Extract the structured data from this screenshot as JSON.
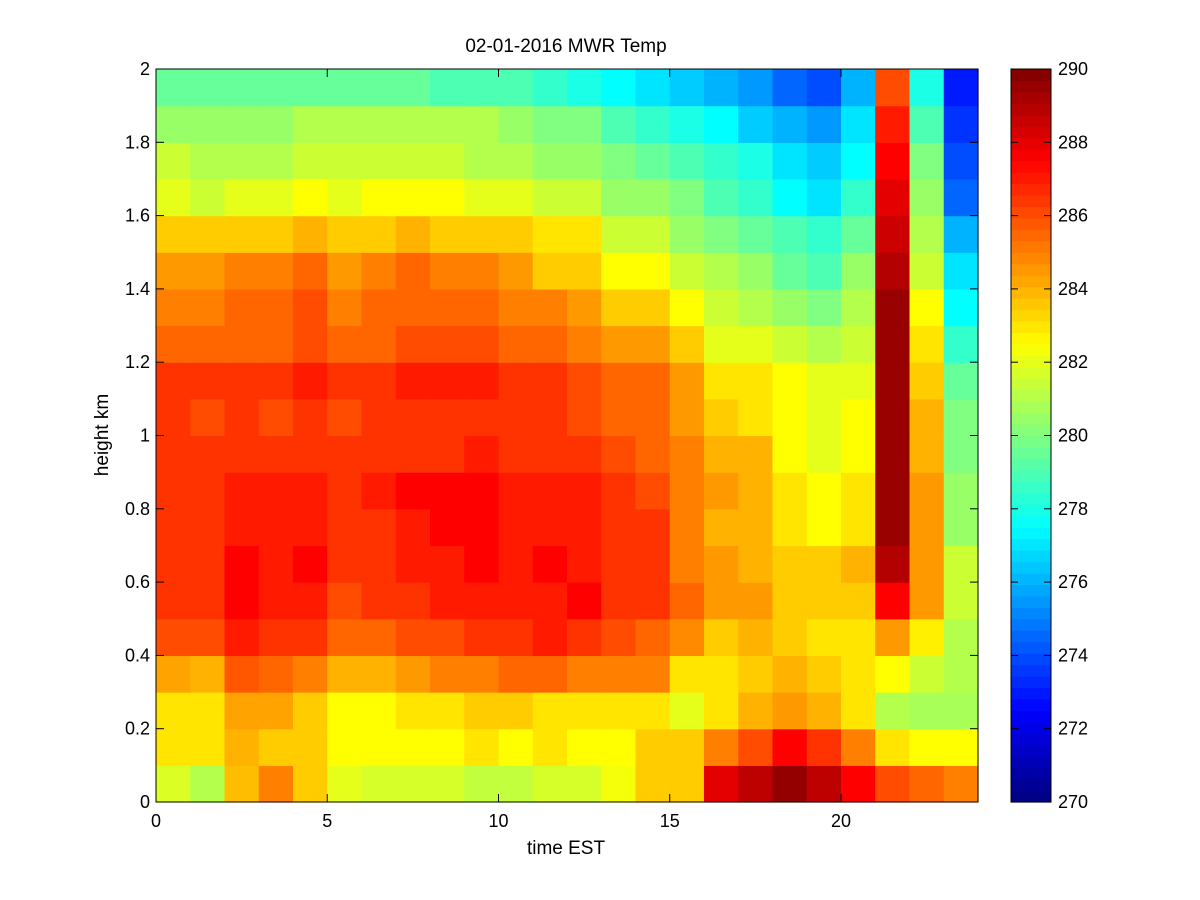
{
  "chart_data": {
    "type": "heatmap",
    "title": "02-01-2016 MWR Temp",
    "xlabel": "time EST",
    "ylabel": "height km",
    "xlim": [
      0,
      24
    ],
    "ylim": [
      0,
      2
    ],
    "x_ticks": [
      0,
      5,
      10,
      15,
      20
    ],
    "y_ticks": [
      0,
      0.2,
      0.4,
      0.6,
      0.8,
      1,
      1.2,
      1.4,
      1.6,
      1.8,
      2
    ],
    "colorbar": {
      "colormap": "jet",
      "range": [
        270,
        290
      ],
      "ticks": [
        270,
        272,
        274,
        276,
        278,
        280,
        282,
        284,
        286,
        288,
        290
      ],
      "position": "right"
    },
    "grid": false,
    "x_centers": [
      0,
      1,
      2,
      3,
      4,
      5,
      6,
      7,
      8,
      9,
      10,
      11,
      12,
      13,
      14,
      15,
      16,
      17,
      18,
      19,
      20,
      21,
      22,
      23
    ],
    "y_levels": [
      0,
      0.1,
      0.2,
      0.3,
      0.4,
      0.5,
      0.6,
      0.7,
      0.8,
      0.9,
      1.0,
      1.1,
      1.2,
      1.3,
      1.4,
      1.5,
      1.6,
      1.7,
      1.8,
      1.9,
      2.0
    ],
    "values": [
      [
        281.8,
        281.0,
        283.8,
        285.0,
        283.5,
        282.0,
        281.7,
        281.7,
        281.7,
        281.3,
        281.3,
        281.7,
        281.7,
        282.3,
        283.5,
        283.5,
        288.0,
        288.8,
        289.6,
        288.8,
        287.5,
        286.0,
        285.5,
        285.0
      ],
      [
        283.0,
        283.0,
        284.0,
        283.5,
        283.5,
        282.5,
        282.5,
        282.5,
        282.5,
        283.0,
        282.5,
        283.0,
        282.5,
        282.5,
        283.5,
        283.5,
        285.0,
        286.0,
        287.5,
        286.5,
        285.0,
        283.0,
        282.5,
        282.5
      ],
      [
        283.0,
        283.0,
        284.3,
        284.3,
        283.5,
        282.5,
        282.5,
        283.0,
        283.0,
        283.5,
        283.5,
        283.0,
        283.0,
        283.0,
        283.0,
        282.0,
        283.0,
        284.0,
        284.5,
        284.0,
        283.0,
        281.0,
        280.8,
        280.8
      ],
      [
        284.3,
        284.0,
        285.8,
        285.5,
        285.0,
        284.0,
        284.0,
        284.5,
        285.0,
        285.0,
        285.5,
        285.5,
        285.0,
        285.0,
        285.0,
        283.0,
        283.0,
        283.5,
        284.0,
        283.5,
        283.0,
        282.5,
        281.5,
        281.0
      ],
      [
        286.0,
        286.0,
        287.0,
        286.5,
        286.5,
        285.5,
        285.5,
        286.0,
        286.0,
        286.5,
        286.5,
        287.0,
        286.5,
        286.0,
        285.5,
        284.8,
        283.5,
        284.0,
        283.5,
        283.0,
        283.0,
        284.5,
        282.8,
        281.0
      ],
      [
        286.5,
        286.5,
        287.5,
        287.0,
        287.0,
        286.0,
        286.5,
        286.5,
        287.0,
        287.0,
        287.0,
        287.0,
        287.5,
        286.5,
        286.5,
        285.5,
        284.5,
        284.5,
        283.5,
        283.5,
        283.5,
        287.5,
        284.5,
        281.5
      ],
      [
        286.5,
        286.5,
        287.5,
        287.0,
        287.5,
        286.5,
        286.5,
        287.0,
        287.0,
        287.5,
        287.0,
        287.5,
        287.0,
        286.5,
        286.5,
        285.0,
        284.5,
        284.0,
        283.5,
        283.5,
        284.0,
        289.0,
        284.5,
        281.5
      ],
      [
        286.5,
        286.5,
        287.0,
        287.0,
        287.0,
        286.5,
        286.5,
        287.0,
        287.5,
        287.5,
        287.0,
        287.0,
        287.0,
        286.5,
        286.5,
        285.0,
        284.0,
        284.0,
        283.0,
        282.5,
        283.0,
        289.5,
        284.5,
        280.5
      ],
      [
        286.5,
        286.5,
        287.0,
        287.0,
        287.0,
        286.5,
        287.0,
        287.5,
        287.5,
        287.5,
        287.0,
        287.0,
        287.0,
        286.5,
        286.0,
        285.0,
        284.5,
        284.0,
        283.0,
        282.5,
        283.0,
        289.5,
        284.5,
        280.5
      ],
      [
        286.5,
        286.5,
        286.5,
        286.5,
        286.5,
        286.5,
        286.5,
        286.5,
        286.5,
        287.0,
        286.5,
        286.5,
        286.5,
        286.0,
        285.5,
        285.0,
        284.0,
        284.0,
        282.5,
        282.0,
        282.5,
        289.5,
        284.0,
        280.0
      ],
      [
        286.5,
        286.0,
        286.5,
        286.0,
        286.5,
        286.0,
        286.5,
        286.5,
        286.5,
        286.5,
        286.5,
        286.5,
        286.0,
        285.5,
        285.5,
        284.5,
        283.5,
        283.0,
        282.5,
        282.0,
        282.5,
        289.5,
        284.0,
        280.0
      ],
      [
        286.5,
        286.5,
        286.5,
        286.5,
        287.0,
        286.5,
        286.5,
        287.0,
        287.0,
        287.0,
        286.5,
        286.5,
        286.0,
        285.5,
        285.5,
        284.5,
        283.0,
        283.0,
        282.5,
        282.0,
        282.0,
        289.5,
        283.5,
        279.5
      ],
      [
        285.5,
        285.5,
        285.5,
        285.5,
        286.0,
        285.5,
        285.5,
        286.0,
        286.0,
        286.0,
        285.5,
        285.5,
        285.0,
        284.5,
        284.5,
        283.5,
        282.0,
        282.0,
        281.5,
        281.0,
        281.5,
        289.5,
        283.0,
        278.5
      ],
      [
        285.0,
        285.0,
        285.5,
        285.5,
        286.0,
        285.0,
        285.5,
        285.5,
        285.5,
        285.5,
        285.0,
        285.0,
        284.5,
        283.5,
        283.5,
        282.5,
        281.5,
        281.0,
        280.5,
        280.0,
        281.0,
        289.5,
        282.5,
        277.5
      ],
      [
        284.5,
        284.5,
        285.0,
        285.0,
        285.5,
        284.5,
        285.0,
        285.5,
        285.0,
        285.0,
        284.5,
        283.5,
        283.5,
        282.5,
        282.5,
        281.5,
        281.0,
        280.5,
        279.5,
        279.0,
        280.5,
        289.0,
        281.5,
        277.0
      ],
      [
        283.5,
        283.5,
        283.5,
        283.5,
        284.0,
        283.5,
        283.5,
        284.0,
        283.5,
        283.5,
        283.5,
        283.0,
        283.0,
        281.5,
        281.5,
        280.5,
        280.0,
        279.5,
        279.0,
        278.5,
        279.5,
        288.5,
        281.0,
        276.0
      ],
      [
        282.0,
        281.5,
        282.0,
        282.0,
        282.5,
        282.0,
        282.5,
        282.5,
        282.5,
        282.0,
        282.0,
        281.5,
        281.5,
        280.5,
        280.5,
        280.0,
        279.0,
        278.5,
        277.5,
        277.0,
        278.5,
        288.0,
        280.5,
        274.5
      ],
      [
        281.5,
        281.0,
        281.0,
        281.0,
        281.5,
        281.5,
        281.5,
        281.5,
        281.5,
        281.0,
        281.0,
        280.5,
        280.5,
        280.0,
        279.5,
        279.0,
        278.5,
        278.0,
        277.0,
        276.5,
        277.5,
        287.5,
        280.0,
        274.0
      ],
      [
        280.5,
        280.5,
        280.5,
        280.5,
        281.0,
        281.0,
        281.0,
        281.0,
        281.0,
        281.0,
        280.5,
        280.0,
        280.0,
        279.0,
        278.5,
        278.0,
        277.5,
        276.5,
        276.0,
        275.5,
        277.0,
        287.0,
        279.0,
        273.5
      ],
      [
        279.5,
        279.5,
        279.5,
        279.5,
        279.5,
        279.5,
        279.5,
        279.5,
        279.0,
        279.0,
        279.0,
        278.5,
        278.0,
        277.5,
        277.0,
        276.5,
        276.0,
        275.5,
        274.5,
        274.0,
        276.0,
        286.0,
        278.0,
        273.0
      ],
      [
        278.5,
        278.0,
        278.0,
        278.0,
        278.5,
        278.5,
        279.0,
        278.5,
        278.0,
        278.0,
        278.0,
        277.5,
        277.0,
        276.5,
        276.0,
        275.5,
        275.0,
        274.5,
        273.5,
        273.0,
        275.5,
        285.5,
        277.0,
        272.0
      ]
    ]
  }
}
